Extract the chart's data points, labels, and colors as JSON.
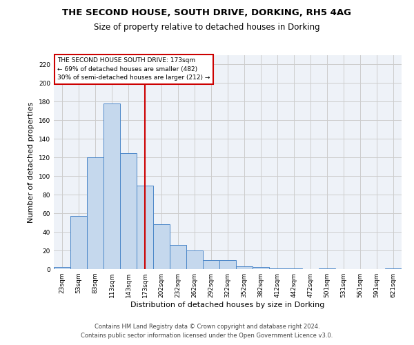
{
  "title1": "THE SECOND HOUSE, SOUTH DRIVE, DORKING, RH5 4AG",
  "title2": "Size of property relative to detached houses in Dorking",
  "xlabel": "Distribution of detached houses by size in Dorking",
  "ylabel": "Number of detached properties",
  "categories": [
    "23sqm",
    "53sqm",
    "83sqm",
    "113sqm",
    "143sqm",
    "173sqm",
    "202sqm",
    "232sqm",
    "262sqm",
    "292sqm",
    "322sqm",
    "352sqm",
    "382sqm",
    "412sqm",
    "442sqm",
    "472sqm",
    "501sqm",
    "531sqm",
    "561sqm",
    "591sqm",
    "621sqm"
  ],
  "values": [
    2,
    57,
    120,
    178,
    125,
    90,
    48,
    26,
    20,
    10,
    10,
    3,
    2,
    1,
    1,
    0,
    1,
    0,
    0,
    0,
    1
  ],
  "bar_color": "#c5d8ed",
  "bar_edge_color": "#4a86c8",
  "vline_x": 5,
  "vline_color": "#cc0000",
  "annotation_text": "THE SECOND HOUSE SOUTH DRIVE: 173sqm\n← 69% of detached houses are smaller (482)\n30% of semi-detached houses are larger (212) →",
  "annotation_box_color": "#ffffff",
  "annotation_box_edge": "#cc0000",
  "ylim": [
    0,
    230
  ],
  "yticks": [
    0,
    20,
    40,
    60,
    80,
    100,
    120,
    140,
    160,
    180,
    200,
    220
  ],
  "grid_color": "#cccccc",
  "bg_color": "#eef2f8",
  "footer1": "Contains HM Land Registry data © Crown copyright and database right 2024.",
  "footer2": "Contains public sector information licensed under the Open Government Licence v3.0.",
  "title1_fontsize": 9.5,
  "title2_fontsize": 8.5,
  "tick_fontsize": 6.5,
  "label_fontsize": 8,
  "annotation_fontsize": 6.5,
  "footer_fontsize": 6.0
}
